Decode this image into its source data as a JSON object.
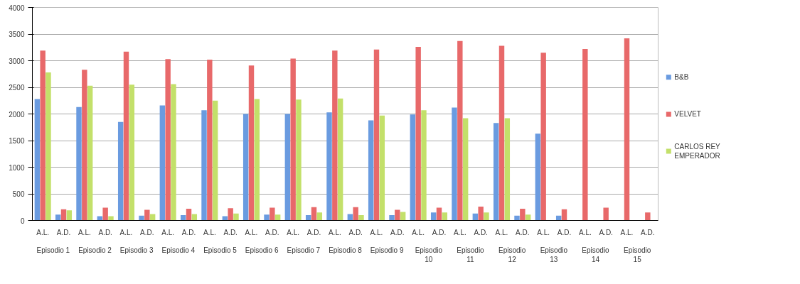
{
  "chart_data": {
    "type": "bar",
    "categories": [
      "A.L.",
      "A.D.",
      "A.L.",
      "A.D.",
      "A.L.",
      "A.D.",
      "A.L.",
      "A.D.",
      "A.L.",
      "A.D.",
      "A.L.",
      "A.D.",
      "A.L.",
      "A.D.",
      "A.L.",
      "A.D.",
      "A.L.",
      "A.D.",
      "A.L.",
      "A.D.",
      "A.L.",
      "A.D.",
      "A.L.",
      "A.D.",
      "A.L.",
      "A.D.",
      "A.L.",
      "A.D.",
      "A.L.",
      "A.D."
    ],
    "annotations": [
      "Episodio 1",
      "Episodio 2",
      "Episodio 3",
      "Episodio 4",
      "Episodio 5",
      "Episodio 6",
      "Episodio 7",
      "Episodio 8",
      "Episodio 9",
      "Episodio 10",
      "Episodio 11",
      "Episodio 12",
      "Episodio 13",
      "Episodio 14",
      "Episodio 15"
    ],
    "series": [
      {
        "name": "B&B",
        "color": "#6a9be0",
        "values": [
          2280,
          110,
          2130,
          80,
          1850,
          90,
          2160,
          100,
          2070,
          80,
          2000,
          110,
          2000,
          100,
          2030,
          120,
          1880,
          100,
          1990,
          150,
          2120,
          130,
          1830,
          90,
          1630,
          90,
          null,
          null,
          null,
          null
        ]
      },
      {
        "name": "VELVET",
        "color": "#e8696a",
        "values": [
          3190,
          210,
          2830,
          240,
          3170,
          200,
          3030,
          220,
          3020,
          230,
          2910,
          240,
          3040,
          250,
          3190,
          250,
          3210,
          200,
          3260,
          240,
          3370,
          260,
          3280,
          220,
          3150,
          210,
          3220,
          240,
          3420,
          150
        ]
      },
      {
        "name": "CARLOS REY EMPERADOR",
        "color": "#c3e06a",
        "values": [
          2780,
          190,
          2530,
          80,
          2550,
          120,
          2560,
          120,
          2250,
          130,
          2280,
          110,
          2270,
          150,
          2290,
          100,
          1970,
          160,
          2070,
          150,
          1920,
          150,
          1920,
          110,
          null,
          null,
          null,
          null,
          null,
          null
        ]
      }
    ],
    "ylim": [
      0,
      4000
    ],
    "yticks": [
      0,
      500,
      1000,
      1500,
      2000,
      2500,
      3000,
      3500,
      4000
    ],
    "grid": "y",
    "legend": "right"
  }
}
